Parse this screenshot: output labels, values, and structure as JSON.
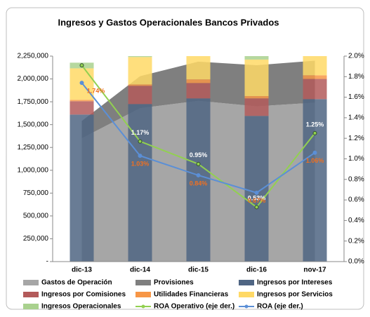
{
  "chart_data": {
    "type": "combo",
    "title": "Ingresos y Gastos Operacionales Bancos Privados",
    "categories": [
      "dic-13",
      "dic-14",
      "dic-15",
      "dic-16",
      "nov-17"
    ],
    "ylim": [
      0,
      2250000
    ],
    "yticks": [
      {
        "value": 0,
        "label": "-"
      },
      {
        "value": 250000,
        "label": "250,000"
      },
      {
        "value": 500000,
        "label": "500,000"
      },
      {
        "value": 750000,
        "label": "750,000"
      },
      {
        "value": 1000000,
        "label": "1,000,000"
      },
      {
        "value": 1250000,
        "label": "1,250,000"
      },
      {
        "value": 1500000,
        "label": "1,500,000"
      },
      {
        "value": 1750000,
        "label": "1,750,000"
      },
      {
        "value": 2000000,
        "label": "2,000,000"
      },
      {
        "value": 2250000,
        "label": "2,250,000"
      }
    ],
    "y2lim": [
      0,
      2
    ],
    "y2ticks": [
      {
        "value": 0,
        "label": "0.0%"
      },
      {
        "value": 0.2,
        "label": "0.2%"
      },
      {
        "value": 0.4,
        "label": "0.4%"
      },
      {
        "value": 0.6,
        "label": "0.6%"
      },
      {
        "value": 0.8,
        "label": "0.8%"
      },
      {
        "value": 1,
        "label": "1.0%"
      },
      {
        "value": 1.2,
        "label": "1.2%"
      },
      {
        "value": 1.4,
        "label": "1.4%"
      },
      {
        "value": 1.6,
        "label": "1.6%"
      },
      {
        "value": 1.8,
        "label": "1.8%"
      },
      {
        "value": 2,
        "label": "2.0%"
      }
    ],
    "series": [
      {
        "name": "Gastos de Operación",
        "kind": "area",
        "color": "#a6a6a6",
        "values": [
          1350000,
          1680000,
          1760000,
          1700000,
          1740000
        ]
      },
      {
        "name": "Provisiones",
        "kind": "area",
        "color": "#7f7f7f",
        "values": [
          190000,
          350000,
          430000,
          450000,
          460000
        ]
      },
      {
        "name": "Ingresos por Intereses",
        "kind": "bar",
        "color": "#4f6583",
        "values": [
          1610000,
          1725000,
          1787000,
          1595000,
          1779000
        ]
      },
      {
        "name": "Ingresos por Comisiones",
        "kind": "bar",
        "color": "#b35a5a",
        "values": [
          146000,
          200000,
          168000,
          192000,
          221000
        ]
      },
      {
        "name": "Utilidades Financieras",
        "kind": "bar",
        "color": "#f79646",
        "values": [
          15000,
          15000,
          40000,
          25000,
          40000
        ]
      },
      {
        "name": "Ingresos por Servicios",
        "kind": "bar",
        "color": "#ffd966",
        "values": [
          345000,
          300000,
          300000,
          400000,
          250000
        ]
      },
      {
        "name": "Ingresos Operacionales",
        "kind": "bar",
        "color": "#a9d18e",
        "values": [
          62000,
          60000,
          60000,
          60000,
          60000
        ]
      },
      {
        "name": "ROA Operativo (eje der.)",
        "kind": "line",
        "axis": "y2",
        "color": "#92d050",
        "label_color": "#ffffff",
        "values": [
          1.91,
          1.17,
          0.95,
          0.53,
          1.25
        ],
        "value_labels": [
          "1.91%",
          "1.17%",
          "0.95%",
          "0.53%",
          "1.25%"
        ]
      },
      {
        "name": "ROA (eje der.)",
        "kind": "line",
        "axis": "y2",
        "color": "#5b8fd6",
        "label_color": "#f07020",
        "values": [
          1.74,
          1.03,
          0.84,
          0.67,
          1.06
        ],
        "value_labels": [
          "1.74%",
          "1.03%",
          "0.84%",
          "0.67%",
          "1.06%"
        ]
      }
    ]
  }
}
